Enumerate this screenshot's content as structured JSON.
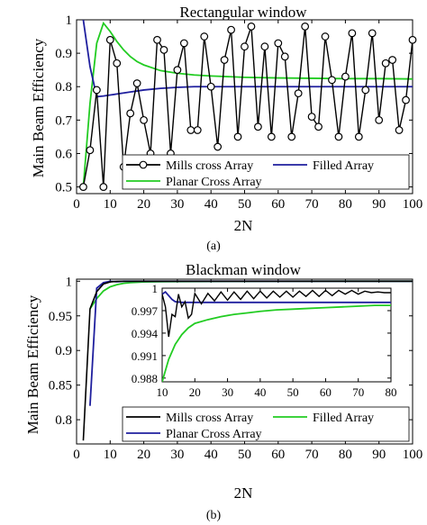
{
  "chart_data": [
    {
      "type": "line",
      "title": "Rectangular window",
      "xlabel": "2N",
      "ylabel": "Main Beam Efficiency",
      "caption": "(a)",
      "xlim": [
        0,
        100
      ],
      "ylim": [
        0.48,
        1.0
      ],
      "xticks": [
        0,
        10,
        20,
        30,
        40,
        50,
        60,
        70,
        80,
        90,
        100
      ],
      "yticks": [
        0.5,
        0.6,
        0.7,
        0.8,
        0.9,
        1
      ],
      "legend": {
        "placement": "lower-right",
        "columns": 2
      },
      "series": [
        {
          "name": "Mills cross Array",
          "color": "#000000",
          "marker": "circle",
          "x": [
            2,
            4,
            6,
            8,
            10,
            12,
            14,
            16,
            18,
            20,
            22,
            24,
            26,
            28,
            30,
            32,
            34,
            36,
            38,
            40,
            42,
            44,
            46,
            48,
            50,
            52,
            54,
            56,
            58,
            60,
            62,
            64,
            66,
            68,
            70,
            72,
            74,
            76,
            78,
            80,
            82,
            84,
            86,
            88,
            90,
            92,
            94,
            96,
            98,
            100
          ],
          "y": [
            0.5,
            0.61,
            0.79,
            0.5,
            0.94,
            0.87,
            0.56,
            0.72,
            0.81,
            0.7,
            0.6,
            0.94,
            0.91,
            0.6,
            0.85,
            0.93,
            0.67,
            0.67,
            0.95,
            0.8,
            0.62,
            0.88,
            0.97,
            0.65,
            0.92,
            0.98,
            0.68,
            0.92,
            0.65,
            0.93,
            0.89,
            0.65,
            0.78,
            0.98,
            0.71,
            0.68,
            0.95,
            0.82,
            0.65,
            0.83,
            0.96,
            0.65,
            0.79,
            0.96,
            0.7,
            0.87,
            0.88,
            0.67,
            0.76,
            0.94
          ]
        },
        {
          "name": "Filled Array",
          "color": "#1f1f9e",
          "x": [
            2,
            4,
            6,
            8,
            10,
            12,
            14,
            16,
            18,
            20,
            25,
            30,
            35,
            40,
            50,
            60,
            70,
            80,
            90,
            100
          ],
          "y": [
            1.0,
            0.86,
            0.77,
            0.772,
            0.775,
            0.778,
            0.781,
            0.784,
            0.787,
            0.79,
            0.795,
            0.798,
            0.8,
            0.8,
            0.8,
            0.8,
            0.8,
            0.8,
            0.8,
            0.8
          ]
        },
        {
          "name": "Planar Cross Array",
          "color": "#22cc22",
          "x": [
            2,
            4,
            6,
            8,
            10,
            12,
            14,
            16,
            18,
            20,
            25,
            30,
            35,
            40,
            50,
            60,
            70,
            80,
            90,
            100
          ],
          "y": [
            0.5,
            0.75,
            0.93,
            0.99,
            0.965,
            0.935,
            0.91,
            0.89,
            0.875,
            0.865,
            0.848,
            0.84,
            0.835,
            0.832,
            0.828,
            0.826,
            0.825,
            0.824,
            0.824,
            0.823
          ]
        }
      ]
    },
    {
      "type": "line",
      "title": "Blackman window",
      "xlabel": "2N",
      "ylabel": "Main Beam Efficiency",
      "caption": "(b)",
      "xlim": [
        0,
        100
      ],
      "ylim": [
        0.765,
        1.003
      ],
      "xticks": [
        0,
        10,
        20,
        30,
        40,
        50,
        60,
        70,
        80,
        90,
        100
      ],
      "yticks": [
        0.8,
        0.85,
        0.9,
        0.95,
        1
      ],
      "legend": {
        "placement": "bottom",
        "columns": 2
      },
      "series": [
        {
          "name": "Mills cross Array",
          "color": "#000000",
          "x": [
            2,
            4,
            6,
            8,
            10,
            12,
            14,
            16,
            18,
            20,
            30,
            40,
            60,
            80,
            100
          ],
          "y": [
            0.77,
            0.96,
            0.985,
            0.996,
            0.999,
            0.9998,
            0.9999,
            0.9999,
            1.0,
            1.0,
            1.0,
            1.0,
            1.0,
            1.0,
            1.0
          ]
        },
        {
          "name": "Filled Array",
          "color": "#22cc22",
          "x": [
            4,
            6,
            8,
            10,
            12,
            14,
            16,
            18,
            20,
            25,
            30,
            40,
            50,
            60,
            80,
            100
          ],
          "y": [
            0.96,
            0.975,
            0.986,
            0.992,
            0.995,
            0.997,
            0.998,
            0.9985,
            0.999,
            0.9993,
            0.9995,
            0.9997,
            0.9998,
            0.9999,
            1.0,
            1.0
          ]
        },
        {
          "name": "Planar Cross Array",
          "color": "#1f1f9e",
          "x": [
            4,
            6,
            8,
            10,
            12,
            14,
            16,
            18,
            20,
            30,
            40,
            60,
            80,
            100
          ],
          "y": [
            0.82,
            0.99,
            0.998,
            0.9999,
            0.9993,
            1.0,
            1.0,
            1.0,
            1.0,
            1.0,
            1.0,
            1.0,
            1.0,
            1.0
          ]
        }
      ],
      "inset": {
        "xlim": [
          10,
          80
        ],
        "ylim": [
          0.9875,
          1.0
        ],
        "xticks": [
          10,
          20,
          30,
          40,
          50,
          60,
          70,
          80
        ],
        "yticks": [
          0.988,
          0.991,
          0.994,
          0.997,
          1
        ],
        "ytick_labels": [
          "0.988",
          "0.991",
          "0.994",
          "0.997",
          "1"
        ],
        "series": [
          {
            "name": "Mills cross Array",
            "color": "#000000",
            "x": [
              10,
              11,
              12,
              13,
              14,
              15,
              16,
              17,
              18,
              19,
              20,
              22,
              24,
              26,
              28,
              30,
              32,
              34,
              36,
              38,
              40,
              42,
              44,
              46,
              48,
              50,
              52,
              54,
              56,
              58,
              60,
              62,
              64,
              66,
              68,
              70,
              72,
              74,
              76,
              78,
              80
            ],
            "y": [
              0.9992,
              0.9975,
              0.9935,
              0.9965,
              0.9962,
              0.9992,
              0.9975,
              0.9982,
              0.996,
              0.9965,
              0.9993,
              0.9979,
              0.9993,
              0.9983,
              0.9995,
              0.9984,
              0.9995,
              0.9985,
              0.9996,
              0.9986,
              0.9996,
              0.9987,
              0.9996,
              0.9988,
              0.9996,
              0.9988,
              0.9996,
              0.9989,
              0.9997,
              0.9989,
              0.9997,
              0.999,
              0.9997,
              0.9992,
              0.9997,
              0.9992,
              0.9996,
              0.9994,
              0.9995,
              0.9994,
              0.9994
            ]
          },
          {
            "name": "Filled Array",
            "color": "#22cc22",
            "x": [
              10,
              12,
              14,
              16,
              18,
              20,
              24,
              28,
              32,
              36,
              40,
              45,
              50,
              55,
              60,
              65,
              70,
              75,
              80
            ],
            "y": [
              0.9875,
              0.9905,
              0.9925,
              0.9938,
              0.9947,
              0.9953,
              0.9958,
              0.9962,
              0.9965,
              0.9967,
              0.9969,
              0.9971,
              0.9972,
              0.9973,
              0.9974,
              0.9975,
              0.9976,
              0.9977,
              0.9977
            ]
          },
          {
            "name": "Planar Cross Array",
            "color": "#1f1f9e",
            "x": [
              10,
              11,
              12,
              13,
              14,
              16,
              18,
              20,
              25,
              30,
              40,
              50,
              60,
              70,
              80
            ],
            "y": [
              0.9992,
              0.9995,
              0.999,
              0.9985,
              0.9982,
              0.9981,
              0.9981,
              0.9981,
              0.9981,
              0.9981,
              0.9981,
              0.9981,
              0.9981,
              0.9981,
              0.9981
            ]
          }
        ]
      }
    }
  ]
}
